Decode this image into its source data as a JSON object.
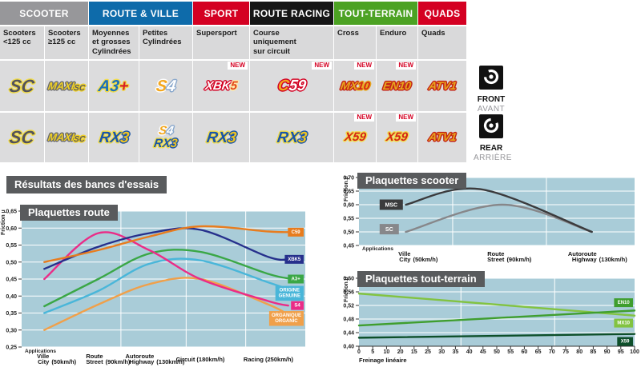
{
  "results_title": "Résultats des bancs d'essais",
  "labels": {
    "new": "NEW",
    "front_en": "FRONT",
    "front_fr": "AVANT",
    "rear_en": "REAR",
    "rear_fr": "ARRIÈRE"
  },
  "table": {
    "groups": [
      {
        "label": "SCOOTER",
        "color": "#97979a",
        "span": 2
      },
      {
        "label": "ROUTE & VILLE",
        "color": "#0e6baa",
        "span": 2
      },
      {
        "label": "SPORT",
        "color": "#d40022",
        "span": 1
      },
      {
        "label": "ROUTE RACING",
        "color": "#161616",
        "span": 1
      },
      {
        "label": "TOUT-TERRAIN",
        "color": "#4ca223",
        "span": 2
      },
      {
        "label": "QUADS",
        "color": "#d40022",
        "span": 1
      }
    ],
    "subcolumns": [
      [
        "Scooters",
        "<125 cc"
      ],
      [
        "Scooters",
        "≥125 cc"
      ],
      [
        "Moyennes",
        "et grosses",
        "Cylindrées"
      ],
      [
        "Petites",
        "Cylindrées"
      ],
      [
        "Supersport"
      ],
      [
        "Course",
        "uniquement",
        "sur circuit"
      ],
      [
        "Cross"
      ],
      [
        "Enduro"
      ],
      [
        "Quads"
      ]
    ],
    "rows": [
      {
        "side": "front",
        "cells": [
          {
            "badges": [
              [
                {
                  "t": "SC",
                  "s": "sc"
                }
              ]
            ]
          },
          {
            "badges": [
              [
                {
                  "t": "MAXI",
                  "s": "maxi"
                },
                {
                  "t": "SC",
                  "s": "maxisc"
                }
              ]
            ]
          },
          {
            "badges": [
              [
                {
                  "t": "A3",
                  "s": "a3"
                },
                {
                  "t": "+",
                  "s": "plus"
                }
              ]
            ]
          },
          {
            "badges": [
              [
                {
                  "t": "S",
                  "s": "s4s"
                },
                {
                  "t": "4",
                  "s": "s44"
                }
              ]
            ]
          },
          {
            "badges": [
              [
                {
                  "t": "XBK",
                  "s": "xbk"
                },
                {
                  "t": "5",
                  "s": "xbk5"
                }
              ]
            ],
            "new": true
          },
          {
            "badges": [
              [
                {
                  "t": "C",
                  "s": "c59c"
                },
                {
                  "t": "59",
                  "s": "c5959"
                }
              ]
            ],
            "new": true
          },
          {
            "badges": [
              [
                {
                  "t": "MX",
                  "s": "gold"
                },
                {
                  "t": "10",
                  "s": "numred"
                }
              ]
            ],
            "new": true
          },
          {
            "badges": [
              [
                {
                  "t": "EN",
                  "s": "gold"
                },
                {
                  "t": "10",
                  "s": "gold"
                }
              ]
            ],
            "new": true
          },
          {
            "badges": [
              [
                {
                  "t": "ATV",
                  "s": "gold"
                },
                {
                  "t": "1",
                  "s": "gold"
                }
              ]
            ]
          }
        ]
      },
      {
        "side": "rear",
        "cells": [
          {
            "badges": [
              [
                {
                  "t": "SC",
                  "s": "sc"
                }
              ]
            ]
          },
          {
            "badges": [
              [
                {
                  "t": "MAXI",
                  "s": "maxi"
                },
                {
                  "t": "SC",
                  "s": "maxisc"
                }
              ]
            ]
          },
          {
            "badges": [
              [
                {
                  "t": "RX",
                  "s": "rx"
                },
                {
                  "t": "3",
                  "s": "rx3"
                }
              ]
            ]
          },
          {
            "badges": [
              [
                {
                  "t": "S",
                  "s": "s4s"
                },
                {
                  "t": "4",
                  "s": "s44"
                }
              ],
              [
                {
                  "t": "RX",
                  "s": "rx"
                },
                {
                  "t": "3",
                  "s": "rx3"
                }
              ]
            ],
            "stack": true
          },
          {
            "badges": [
              [
                {
                  "t": "RX",
                  "s": "rx"
                },
                {
                  "t": "3",
                  "s": "rx3"
                }
              ]
            ]
          },
          {
            "badges": [
              [
                {
                  "t": "RX",
                  "s": "rx"
                },
                {
                  "t": "3",
                  "s": "rx3"
                }
              ]
            ]
          },
          {
            "badges": [
              [
                {
                  "t": "X59",
                  "s": "x59"
                }
              ]
            ],
            "new": true
          },
          {
            "badges": [
              [
                {
                  "t": "X59",
                  "s": "x59"
                }
              ]
            ],
            "new": true
          },
          {
            "badges": [
              [
                {
                  "t": "ATV",
                  "s": "gold"
                },
                {
                  "t": "1",
                  "s": "gold"
                }
              ]
            ]
          }
        ]
      }
    ]
  },
  "chart_data": [
    {
      "id": "route",
      "type": "line",
      "title": "Plaquettes route",
      "ylabel": "Friction µ",
      "xlabel": "Applications",
      "ylim": [
        0.25,
        0.65
      ],
      "yticks": [
        "0,65",
        "0,60",
        "0,55",
        "0,50",
        "0,45",
        "0,40",
        "0,35",
        "0,30",
        "0,25"
      ],
      "plot_bg": "#a9ccd8",
      "grid_color": "#ffffff",
      "vgrid": [
        0.35,
        0.58,
        0.79
      ],
      "smooth": true,
      "categories": [
        {
          "l1": "Ville",
          "l2": "City",
          "speed": "(50km/h)",
          "x": 0.08
        },
        {
          "l1": "Route",
          "l2": "Street",
          "speed": "(90km/h)",
          "x": 0.27
        },
        {
          "l1": "Autoroute",
          "l2": "Highway",
          "speed": "(130km/h)",
          "x": 0.45
        },
        {
          "l1": "Circuit",
          "l2": "",
          "speed": "(180km/h)",
          "x": 0.63
        },
        {
          "l1": "Racing",
          "l2": "",
          "speed": "(250km/h)",
          "x": 0.87
        }
      ],
      "series": [
        {
          "name": "ORGANIQUE ORGANIC",
          "color": "#f0a04a",
          "values": [
            0.3,
            0.375,
            0.435,
            0.45,
            0.375
          ],
          "pts": [
            [
              0.08,
              0.3
            ],
            [
              0.27,
              0.375
            ],
            [
              0.45,
              0.435
            ],
            [
              0.63,
              0.45
            ],
            [
              0.87,
              0.375
            ],
            [
              0.94,
              0.345
            ]
          ],
          "label": {
            "lines": [
              "ORGANIQUE",
              "ORGANIC"
            ],
            "y": 0.334
          }
        },
        {
          "name": "ORIGINE GENUINE",
          "color": "#49b6d9",
          "values": [
            0.35,
            0.415,
            0.495,
            0.505,
            0.44
          ],
          "pts": [
            [
              0.08,
              0.35
            ],
            [
              0.27,
              0.415
            ],
            [
              0.45,
              0.495
            ],
            [
              0.63,
              0.505
            ],
            [
              0.87,
              0.44
            ],
            [
              0.94,
              0.42
            ]
          ],
          "label": {
            "lines": [
              "ORIGINE",
              "GENUINE"
            ],
            "y": 0.408
          }
        },
        {
          "name": "A3+",
          "color": "#3aa746",
          "values": [
            0.37,
            0.45,
            0.525,
            0.53,
            0.465
          ],
          "pts": [
            [
              0.08,
              0.37
            ],
            [
              0.27,
              0.45
            ],
            [
              0.45,
              0.525
            ],
            [
              0.63,
              0.53
            ],
            [
              0.87,
              0.465
            ],
            [
              0.94,
              0.452
            ]
          ],
          "label": {
            "lines": [
              "A3+"
            ],
            "y": 0.45
          }
        },
        {
          "name": "S4",
          "color": "#ea2c87",
          "values": [
            0.45,
            0.585,
            0.535,
            0.45,
            0.385
          ],
          "pts": [
            [
              0.08,
              0.45
            ],
            [
              0.27,
              0.585
            ],
            [
              0.45,
              0.535
            ],
            [
              0.63,
              0.45
            ],
            [
              0.87,
              0.385
            ],
            [
              0.94,
              0.372
            ]
          ],
          "label": {
            "lines": [
              "S4"
            ],
            "y": 0.372
          }
        },
        {
          "name": "XBK5",
          "color": "#26308c",
          "values": [
            0.48,
            0.545,
            0.585,
            0.595,
            0.515
          ],
          "pts": [
            [
              0.08,
              0.48
            ],
            [
              0.27,
              0.545
            ],
            [
              0.45,
              0.585
            ],
            [
              0.63,
              0.595
            ],
            [
              0.87,
              0.515
            ],
            [
              0.94,
              0.508
            ]
          ],
          "label": {
            "lines": [
              "XBK5"
            ],
            "y": 0.508
          }
        },
        {
          "name": "C59",
          "color": "#e87c1e",
          "values": [
            0.5,
            0.535,
            0.575,
            0.605,
            0.59
          ],
          "pts": [
            [
              0.08,
              0.5
            ],
            [
              0.27,
              0.535
            ],
            [
              0.45,
              0.575
            ],
            [
              0.63,
              0.605
            ],
            [
              0.87,
              0.59
            ],
            [
              0.94,
              0.588
            ]
          ],
          "label": {
            "lines": [
              "C59"
            ],
            "y": 0.588
          }
        }
      ]
    },
    {
      "id": "scooter",
      "type": "line",
      "title": "Plaquettes scooter",
      "ylabel": "Friction µ",
      "xlabel": "Applications",
      "ylim": [
        0.45,
        0.7
      ],
      "yticks": [
        "0,70",
        "0,65",
        "0,60",
        "0,55",
        "0,50",
        "0,45"
      ],
      "plot_bg": "#a9ccd8",
      "grid_color": "#ffffff",
      "vgrid": [
        0.34,
        0.68
      ],
      "smooth": true,
      "categories": [
        {
          "l1": "Ville",
          "l2": "City",
          "speed": "(50km/h)",
          "x": 0.17
        },
        {
          "l1": "Route",
          "l2": "Street",
          "speed": "(90km/h)",
          "x": 0.51
        },
        {
          "l1": "Autoroute",
          "l2": "Highway",
          "speed": "(130km/h)",
          "x": 0.845
        }
      ],
      "series": [
        {
          "name": "SC",
          "color": "#87878a",
          "values": [
            0.5,
            0.6,
            0.5
          ],
          "pts": [
            [
              0.17,
              0.5
            ],
            [
              0.52,
              0.6
            ],
            [
              0.845,
              0.5
            ]
          ],
          "label": {
            "lines": [
              "SC"
            ],
            "y": 0.51,
            "x": 0.075
          }
        },
        {
          "name": "MSC",
          "color": "#3b3b3d",
          "values": [
            0.6,
            0.655,
            0.5
          ],
          "pts": [
            [
              0.17,
              0.6
            ],
            [
              0.44,
              0.657
            ],
            [
              0.845,
              0.5
            ]
          ],
          "label": {
            "lines": [
              "MSC"
            ],
            "y": 0.6,
            "x": 0.075
          }
        }
      ]
    },
    {
      "id": "tt",
      "type": "line",
      "title": "Plaquettes tout-terrain",
      "ylabel": "Friction µ",
      "xlabel": "Freinage linéaire",
      "ylim": [
        0.4,
        0.6
      ],
      "yticks": [
        "0,60",
        "0,56",
        "0,52",
        "0,48",
        "0,44",
        "0,40"
      ],
      "xticks": [
        "0",
        "5",
        "10",
        "20",
        "15",
        "25",
        "30",
        "35",
        "40",
        "45",
        "50",
        "55",
        "60",
        "65",
        "70",
        "75",
        "80",
        "85",
        "90",
        "95",
        "100"
      ],
      "plot_bg": "#a9ccd8",
      "grid_color": "#ffffff",
      "vgrid": [
        0.37,
        0.71
      ],
      "smooth": false,
      "series": [
        {
          "name": "MX10",
          "color": "#82c341",
          "values": [
            0.555,
            0.49
          ],
          "pts": [
            [
              0,
              0.555
            ],
            [
              1,
              0.49
            ]
          ],
          "label": {
            "lines": [
              "MX10"
            ],
            "y": 0.468
          }
        },
        {
          "name": "EN10",
          "color": "#3f9e2e",
          "values": [
            0.461,
            0.505
          ],
          "pts": [
            [
              0,
              0.461
            ],
            [
              1,
              0.505
            ]
          ],
          "label": {
            "lines": [
              "EN10"
            ],
            "y": 0.528
          }
        },
        {
          "name": "X59",
          "color": "#0d4f2a",
          "values": [
            0.425,
            0.436
          ],
          "pts": [
            [
              0,
              0.425
            ],
            [
              1,
              0.436
            ]
          ],
          "label": {
            "lines": [
              "X59"
            ],
            "y": 0.414
          }
        }
      ]
    }
  ]
}
